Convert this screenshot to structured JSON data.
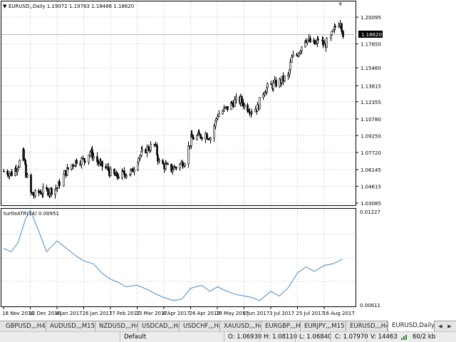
{
  "main_chart": {
    "title": "EURUSD,,Daily  1.19072 1.19783 1.18486 1.18620",
    "price_levels": [
      "1.20095",
      "1.17650",
      "1.15460",
      "1.13815",
      "1.12355",
      "1.10780",
      "1.09250",
      "1.07720",
      "1.06145",
      "1.04615",
      "1.03085"
    ],
    "current_price": "1.18620",
    "indicator_marker": "▼"
  },
  "indicator_window": {
    "title": "turtleATR(14) 0.00951",
    "top_value": "0.01227",
    "bottom_value": "0.00611",
    "line_color": "#4a8ac9"
  },
  "time_axis": {
    "labels": [
      "18 Nov 2016",
      "12 Dec 2016",
      "4 Jan 2017",
      "26 Jan 2017",
      "17 Feb 2017",
      "13 Mar 2017",
      "4 Apr 2017",
      "26 Apr 2017",
      "18 May 2017",
      "9 Jun 2017",
      "3 Jul 2017",
      "25 Jul 2017",
      "16 Aug 2017"
    ]
  },
  "tabs": [
    {
      "label": "GBPUSD,,,H4"
    },
    {
      "label": "AUDUSD,,,M15"
    },
    {
      "label": "NZDUSD,,,H4"
    },
    {
      "label": "USDCAD,,,H4"
    },
    {
      "label": "USDCHF,,,H4"
    },
    {
      "label": "XAUUSD,,,H4"
    },
    {
      "label": "EURGBP,,,H4"
    },
    {
      "label": "EURJPY,,,M15"
    },
    {
      "label": "EURUSD,,,H4"
    },
    {
      "label": "EURUSD,Daily"
    }
  ],
  "status": {
    "profile": "Default",
    "open": "O: 1.06930",
    "high": "H: 1.08110",
    "low": "L: 1.06840",
    "close": "C: 1.07970",
    "volume": "V: 14463",
    "traffic": "60/2 kb"
  },
  "colors": {
    "candles": "#000000",
    "atr": "#4a8ac9",
    "grid": "#c0c0c0"
  },
  "chart_data": [
    {
      "type": "candlestick",
      "title": "EURUSD,,Daily  1.19072 1.19783 1.18486 1.18620",
      "ylim": [
        1.03085,
        1.2075
      ],
      "x": [
        "18 Nov 2016",
        "12 Dec 2016",
        "4 Jan 2017",
        "26 Jan 2017",
        "17 Feb 2017",
        "13 Mar 2017",
        "4 Apr 2017",
        "26 Apr 2017",
        "18 May 2017",
        "9 Jun 2017",
        "3 Jul 2017",
        "25 Jul 2017",
        "16 Aug 2017"
      ],
      "close_path": [
        [
          "18 Nov 2016",
          1.06
        ],
        [
          "25 Nov 2016",
          1.058
        ],
        [
          "1 Dec 2016",
          1.066
        ],
        [
          "5 Dec 2016",
          1.076
        ],
        [
          "8 Dec 2016",
          1.058
        ],
        [
          "12 Dec 2016",
          1.04
        ],
        [
          "15 Dec 2016",
          1.038
        ],
        [
          "20 Dec 2016",
          1.041
        ],
        [
          "28 Dec 2016",
          1.042
        ],
        [
          "4 Jan 2017",
          1.045
        ],
        [
          "10 Jan 2017",
          1.058
        ],
        [
          "16 Jan 2017",
          1.066
        ],
        [
          "20 Jan 2017",
          1.07
        ],
        [
          "26 Jan 2017",
          1.07
        ],
        [
          "31 Jan 2017",
          1.078
        ],
        [
          "8 Feb 2017",
          1.066
        ],
        [
          "14 Feb 2017",
          1.062
        ],
        [
          "17 Feb 2017",
          1.058
        ],
        [
          "22 Feb 2017",
          1.055
        ],
        [
          "1 Mar 2017",
          1.058
        ],
        [
          "8 Mar 2017",
          1.059
        ],
        [
          "13 Mar 2017",
          1.072
        ],
        [
          "20 Mar 2017",
          1.08
        ],
        [
          "27 Mar 2017",
          1.084
        ],
        [
          "31 Mar 2017",
          1.068
        ],
        [
          "4 Apr 2017",
          1.065
        ],
        [
          "10 Apr 2017",
          1.062
        ],
        [
          "17 Apr 2017",
          1.066
        ],
        [
          "21 Apr 2017",
          1.07
        ],
        [
          "26 Apr 2017",
          1.09
        ],
        [
          "2 May 2017",
          1.092
        ],
        [
          "8 May 2017",
          1.094
        ],
        [
          "12 May 2017",
          1.091
        ],
        [
          "18 May 2017",
          1.112
        ],
        [
          "26 May 2017",
          1.118
        ],
        [
          "1 Jun 2017",
          1.124
        ],
        [
          "6 Jun 2017",
          1.125
        ],
        [
          "9 Jun 2017",
          1.12
        ],
        [
          "15 Jun 2017",
          1.116
        ],
        [
          "21 Jun 2017",
          1.118
        ],
        [
          "27 Jun 2017",
          1.135
        ],
        [
          "3 Jul 2017",
          1.138
        ],
        [
          "10 Jul 2017",
          1.142
        ],
        [
          "17 Jul 2017",
          1.147
        ],
        [
          "20 Jul 2017",
          1.163
        ],
        [
          "25 Jul 2017",
          1.168
        ],
        [
          "31 Jul 2017",
          1.182
        ],
        [
          "4 Aug 2017",
          1.178
        ],
        [
          "9 Aug 2017",
          1.176
        ],
        [
          "11 Aug 2017",
          1.181
        ],
        [
          "16 Aug 2017",
          1.175
        ],
        [
          "21 Aug 2017",
          1.182
        ],
        [
          "25 Aug 2017",
          1.192
        ],
        [
          "29 Aug 2017",
          1.198
        ],
        [
          "31 Aug 2017",
          1.186
        ]
      ]
    },
    {
      "type": "line",
      "title": "turtleATR(14) 0.00951",
      "ylim": [
        0.00611,
        0.01227
      ],
      "series": [
        {
          "name": "turtleATR(14)",
          "points": [
            [
              "18 Nov 2016",
              0.0098
            ],
            [
              "25 Nov 2016",
              0.0096
            ],
            [
              "1 Dec 2016",
              0.0102
            ],
            [
              "8 Dec 2016",
              0.0118
            ],
            [
              "12 Dec 2016",
              0.0123
            ],
            [
              "19 Dec 2016",
              0.011
            ],
            [
              "26 Dec 2016",
              0.0096
            ],
            [
              "4 Jan 2017",
              0.0103
            ],
            [
              "12 Jan 2017",
              0.0098
            ],
            [
              "20 Jan 2017",
              0.0093
            ],
            [
              "26 Jan 2017",
              0.009
            ],
            [
              "3 Feb 2017",
              0.0088
            ],
            [
              "10 Feb 2017",
              0.0082
            ],
            [
              "17 Feb 2017",
              0.0078
            ],
            [
              "24 Feb 2017",
              0.0076
            ],
            [
              "3 Mar 2017",
              0.0073
            ],
            [
              "13 Mar 2017",
              0.0074
            ],
            [
              "22 Mar 2017",
              0.0071
            ],
            [
              "29 Mar 2017",
              0.0068
            ],
            [
              "4 Apr 2017",
              0.0066
            ],
            [
              "12 Apr 2017",
              0.0064
            ],
            [
              "19 Apr 2017",
              0.0065
            ],
            [
              "26 Apr 2017",
              0.0072
            ],
            [
              "5 May 2017",
              0.0074
            ],
            [
              "12 May 2017",
              0.007
            ],
            [
              "18 May 2017",
              0.0073
            ],
            [
              "26 May 2017",
              0.007
            ],
            [
              "2 Jun 2017",
              0.0068
            ],
            [
              "9 Jun 2017",
              0.0067
            ],
            [
              "16 Jun 2017",
              0.0066
            ],
            [
              "23 Jun 2017",
              0.0064
            ],
            [
              "3 Jul 2017",
              0.007
            ],
            [
              "10 Jul 2017",
              0.0067
            ],
            [
              "17 Jul 2017",
              0.0072
            ],
            [
              "25 Jul 2017",
              0.0082
            ],
            [
              "1 Aug 2017",
              0.0086
            ],
            [
              "8 Aug 2017",
              0.0083
            ],
            [
              "16 Aug 2017",
              0.0087
            ],
            [
              "23 Aug 2017",
              0.0088
            ],
            [
              "31 Aug 2017",
              0.0091
            ]
          ]
        }
      ]
    }
  ]
}
